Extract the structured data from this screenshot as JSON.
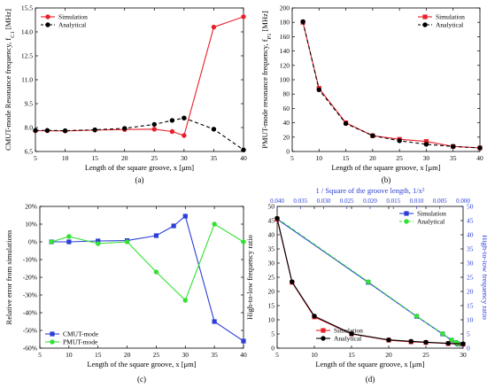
{
  "chart_data": [
    {
      "type": "line",
      "panel_label": "(a)",
      "xlabel": "Length of the square groove, x [μm]",
      "ylabel": "CMUT-mode Resonance frequency, f_C1 [MHz]",
      "xlim": [
        5,
        40
      ],
      "ylim": [
        6.5,
        15.5
      ],
      "xticks": [
        5,
        10,
        15,
        20,
        25,
        30,
        35,
        40
      ],
      "yticks": [
        6.5,
        8.0,
        9.5,
        11.0,
        12.5,
        14.0,
        15.5
      ],
      "ytick_labels": [
        "6.5",
        "8.0",
        "9.5",
        "11.0",
        "12.5",
        "14.0",
        "15.5"
      ],
      "legend_position": "top-left",
      "series": [
        {
          "name": "Simulation",
          "color": "#e8202a",
          "marker": "circle",
          "dash": "solid",
          "x": [
            5,
            7,
            10,
            15,
            20,
            25,
            28,
            30,
            35,
            40
          ],
          "y": [
            7.8,
            7.8,
            7.79,
            7.84,
            7.88,
            7.9,
            7.75,
            7.5,
            14.3,
            14.95
          ]
        },
        {
          "name": "Analytical",
          "color": "#000000",
          "marker": "circle",
          "dash": "dashed",
          "x": [
            5,
            7,
            10,
            15,
            20,
            25,
            28,
            30,
            35,
            40
          ],
          "y": [
            7.82,
            7.82,
            7.8,
            7.86,
            7.95,
            8.2,
            8.45,
            8.6,
            7.9,
            6.6
          ]
        }
      ]
    },
    {
      "type": "line",
      "panel_label": "(b)",
      "xlabel": "Length of the square groove, x [μm]",
      "ylabel": "PMUT-mode resonance frequency, f_P1 [MHz]",
      "xlim": [
        5,
        40
      ],
      "ylim": [
        0,
        200
      ],
      "xticks": [
        5,
        10,
        15,
        20,
        25,
        30,
        35,
        40
      ],
      "yticks": [
        0,
        20,
        40,
        60,
        80,
        100,
        120,
        140,
        160,
        180,
        200
      ],
      "ytick_labels": [
        "0",
        "20",
        "40",
        "60",
        "80",
        "100",
        "120",
        "140",
        "160",
        "180",
        "200"
      ],
      "legend_position": "top-right",
      "series": [
        {
          "name": "Simulation",
          "color": "#e8202a",
          "marker": "square",
          "dash": "solid",
          "x": [
            7,
            10,
            15,
            20,
            25,
            30,
            35,
            40
          ],
          "y": [
            180,
            88,
            40,
            22,
            17,
            14,
            7,
            5
          ]
        },
        {
          "name": "Analytical",
          "color": "#000000",
          "marker": "circle",
          "dash": "dashed",
          "x": [
            7,
            10,
            15,
            20,
            25,
            30,
            35,
            40
          ],
          "y": [
            181,
            86,
            39,
            22,
            15,
            10,
            7,
            5
          ]
        }
      ]
    },
    {
      "type": "line",
      "panel_label": "(c)",
      "xlabel": "Length of the square groove, x [μm]",
      "ylabel": "Relative error from simulations",
      "xlim": [
        5,
        40
      ],
      "ylim": [
        -60,
        20
      ],
      "xticks": [
        5,
        10,
        15,
        20,
        25,
        30,
        35,
        40
      ],
      "yticks": [
        -60,
        -50,
        -40,
        -30,
        -20,
        -10,
        0,
        10,
        20
      ],
      "ytick_labels": [
        "-60%",
        "-50%",
        "-40%",
        "-30%",
        "-20%",
        "-10%",
        "0%",
        "10%",
        "20%"
      ],
      "legend_position": "bottom-left",
      "series": [
        {
          "name": "CMUT-mode",
          "color": "#2b3fd6",
          "marker": "square",
          "dash": "solid",
          "x": [
            7,
            10,
            15,
            20,
            25,
            28,
            30,
            35,
            40
          ],
          "y": [
            0,
            0,
            0.5,
            0.7,
            3.5,
            9,
            14.5,
            -45,
            -56
          ]
        },
        {
          "name": "PMUT-mode",
          "color": "#33e033",
          "marker": "circle",
          "dash": "solid",
          "x": [
            7,
            10,
            15,
            20,
            25,
            30,
            35,
            40
          ],
          "y": [
            0,
            3,
            -1,
            0,
            -17,
            -33,
            10,
            0
          ]
        }
      ]
    },
    {
      "type": "line",
      "panel_label": "(d)",
      "xlabel": "Length of the square groove, x [μm]",
      "ylabel": "High-to-low frequency ratio",
      "top_xlabel": "1 / Square of the groove length, 1/x²",
      "right_ylabel": "High-to-low frequency ratio",
      "xlim": [
        5,
        30
      ],
      "ylim": [
        0,
        50
      ],
      "top_xlim": [
        0.04,
        0.0
      ],
      "xticks": [
        5,
        10,
        15,
        20,
        25,
        30
      ],
      "yticks": [
        0,
        5,
        10,
        15,
        20,
        25,
        30,
        35,
        40,
        45,
        50
      ],
      "ytick_labels": [
        "0",
        "5",
        "10",
        "15",
        "20",
        "25",
        "30",
        "35",
        "40",
        "45",
        "50"
      ],
      "top_xticks": [
        0.04,
        0.035,
        0.03,
        0.025,
        0.02,
        0.015,
        0.01,
        0.005,
        0.0
      ],
      "top_xtick_labels": [
        "0.040",
        "0.035",
        "0.030",
        "0.025",
        "0.020",
        "0.015",
        "0.010",
        "0.005",
        "0.000"
      ],
      "legend_top_position": "top-right",
      "legend_bottom_position": "bottom-center",
      "series": [
        {
          "name": "Simulation",
          "axis": "top",
          "color": "#2b3fd6",
          "marker": "square",
          "dash": "solid",
          "x": [
            0.04,
            0.0204,
            0.01,
            0.0044,
            0.0025,
            0.0016,
            0.0012,
            0.001
          ],
          "y": [
            45.5,
            23.2,
            11.2,
            5.0,
            2.8,
            2.0,
            1.6,
            1.4
          ]
        },
        {
          "name": "Analytical",
          "axis": "top",
          "color": "#33e033",
          "marker": "circle",
          "dash": "dashed",
          "x": [
            0.04,
            0.0204,
            0.01,
            0.0044,
            0.0025,
            0.0016,
            0.0012,
            0.001
          ],
          "y": [
            45.8,
            23.4,
            11.3,
            5.1,
            2.9,
            2.1,
            1.7,
            1.5
          ]
        },
        {
          "name": "Simulation",
          "axis": "bottom",
          "color": "#e8202a",
          "marker": "square",
          "dash": "solid",
          "x": [
            5,
            7,
            10,
            15,
            20,
            23,
            25,
            28,
            30
          ],
          "y": [
            45.5,
            23.2,
            11.0,
            5.0,
            2.8,
            2.2,
            2.0,
            1.6,
            1.4
          ]
        },
        {
          "name": "Analytical",
          "axis": "bottom",
          "color": "#000000",
          "marker": "circle",
          "dash": "solid",
          "x": [
            5,
            7,
            10,
            15,
            20,
            23,
            25,
            28,
            30
          ],
          "y": [
            45.8,
            23.4,
            11.3,
            5.1,
            2.9,
            2.4,
            2.1,
            1.7,
            1.5
          ]
        }
      ]
    }
  ]
}
